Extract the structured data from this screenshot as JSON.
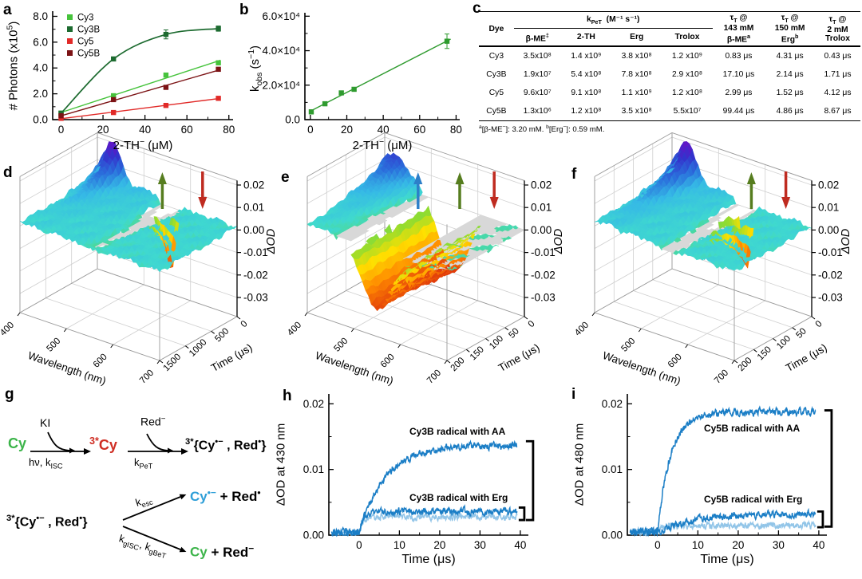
{
  "panel_labels": {
    "a": "a",
    "b": "b",
    "c": "c",
    "d": "d",
    "e": "e",
    "f": "f",
    "g": "g",
    "h": "h",
    "i": "i"
  },
  "table": {
    "header": {
      "dye": "Dye",
      "group": "k<sub>PeT</sub>&nbsp; (M⁻¹ s⁻¹)",
      "sub": [
        "β-ME<sup>‡</sup>",
        "2-TH",
        "Erg",
        "Trolox"
      ],
      "tau": [
        "τ<sub>T</sub> @<br>143 mM<br>β-ME<sup>a</sup>",
        "τ<sub>T</sub> @<br>150 mM<br>Erg<sup>b</sup>",
        "τ<sub>T</sub> @<br>2 mM<br>Trolox"
      ]
    },
    "rows": [
      [
        "Cy3",
        "3.5x10⁸",
        "1.4 x10⁹",
        "3.8 x10⁸",
        "1.2 x10⁹",
        "0.83 μs",
        "4.31 μs",
        "0.43 μs"
      ],
      [
        "Cy3B",
        "1.9x10⁷",
        "5.4 x10⁸",
        "7.8 x10⁸",
        "2.9 x10⁸",
        "17.10 μs",
        "2.14 μs",
        "1.71 μs"
      ],
      [
        "Cy5",
        "9.6x10⁷",
        "9.1 x10⁸",
        "1.1 x10⁹",
        "1.2 x10⁸",
        "2.99 μs",
        "1.52 μs",
        "4.12 μs"
      ],
      [
        "Cy5B",
        "1.3x10⁶",
        "1.2 x10⁸",
        "3.5 x10⁸",
        "5.5x10⁷",
        "99.44 μs",
        "4.86 μs",
        "8.67 μs"
      ]
    ],
    "footnote": "<sup>a</sup>[β-ME<sup>−</sup>]: 3.20 mM. <sup>b</sup>[Erg<sup>−</sup>]: 0.59 mM."
  },
  "scheme": {
    "cy": "Cy",
    "ki": "KI",
    "hv": "hν, k<sub>ISC</sub>",
    "triplet": "<sup>3*</sup>Cy",
    "red": "Red<sup>−</sup>",
    "kpet": "k<sub>PeT</sub>",
    "pair": "<sup>3*</sup>{Cy<sup>•−</sup> , Red<sup>•</sup>}",
    "kesc": "k<sub>esc</sub>",
    "kg": "k<sub>gISC</sub>, k<sub>gBeT</sub>",
    "esc_cy": "Cy<sup>•−</sup>",
    "esc_red": "&nbsp;+ Red<sup>•</sup>",
    "g_cy": "Cy",
    "g_red": "&nbsp;+ Red<sup>−</sup>",
    "colors": {
      "cy_green": "#3cb44a",
      "triplet_red": "#cf2e24",
      "radical_blue": "#2f9fd8"
    }
  },
  "chart_data": [
    {
      "panel": "a",
      "type": "scatter",
      "xlabel": "2-TH<sup>−</sup> (μM)",
      "ylabel": "# Photons (x10<sup>5</sup>)",
      "xlim": [
        -4,
        82
      ],
      "ylim": [
        0,
        8.4
      ],
      "xticks": [
        0,
        20,
        40,
        60,
        80
      ],
      "xminor": [
        10,
        30,
        50,
        70
      ],
      "yticks": [
        {
          "v": 0,
          "label": "0.0"
        },
        {
          "v": 2,
          "label": "2.0"
        },
        {
          "v": 4,
          "label": "4.0"
        },
        {
          "v": 6,
          "label": "6.0"
        },
        {
          "v": 8,
          "label": "8.0"
        }
      ],
      "yminor": [
        1,
        3,
        5,
        7
      ],
      "series": [
        {
          "name": "Cy3",
          "color": "#46c33c",
          "x": [
            0,
            25,
            50,
            75
          ],
          "y": [
            0.5,
            1.85,
            3.45,
            4.4
          ],
          "fit": "line"
        },
        {
          "name": "Cy3B",
          "color": "#1d6b30",
          "x": [
            0,
            25,
            50,
            75
          ],
          "y": [
            0.5,
            4.7,
            6.6,
            7.05
          ],
          "yerr": [
            0.1,
            0.15,
            0.35,
            0.2
          ],
          "fit": "curve"
        },
        {
          "name": "Cy5",
          "color": "#e12a28",
          "x": [
            0,
            25,
            50,
            75
          ],
          "y": [
            0.1,
            0.55,
            1.1,
            1.65
          ],
          "fit": "line"
        },
        {
          "name": "Cy5B",
          "color": "#7c1315",
          "x": [
            0,
            25,
            50,
            75
          ],
          "y": [
            0.3,
            1.55,
            2.5,
            3.9
          ],
          "fit": "line"
        }
      ]
    },
    {
      "panel": "b",
      "type": "scatter",
      "xlabel": "2-TH<sup>−</sup> (μM)",
      "ylabel": "k<sub>obs</sub> (s<sup>−1</sup>)",
      "xlim": [
        -3,
        82
      ],
      "ylim": [
        0,
        62000
      ],
      "xticks": [
        0,
        20,
        40,
        60,
        80
      ],
      "xminor": [
        10,
        30,
        50,
        70
      ],
      "yticks": [
        {
          "v": 0,
          "label": "0.0"
        },
        {
          "v": 20000,
          "label": "2.0×10⁴"
        },
        {
          "v": 40000,
          "label": "4.0×10⁴"
        },
        {
          "v": 60000,
          "label": "6.0×10⁴"
        }
      ],
      "yminor": [
        10000,
        30000,
        50000
      ],
      "series": [
        {
          "name": "kobs",
          "color": "#2f9b2f",
          "x": [
            0.5,
            8,
            17,
            24,
            75
          ],
          "y": [
            4500,
            9200,
            15500,
            17600,
            45500
          ],
          "yerr": [
            1200,
            600,
            900,
            800,
            4200
          ],
          "fit": "line-ext"
        }
      ]
    },
    {
      "panel": "d",
      "type": "surface3d",
      "xlabel": "Wavelength (nm)",
      "ylabel": "Time (μs)",
      "zlabel": "ΔOD",
      "wl_ticks": [
        400,
        500,
        600,
        700
      ],
      "time_ticks": [
        0,
        500,
        1000,
        1500
      ],
      "time_max": 1500,
      "zticks": [
        {
          "v": 0.02,
          "label": "0.02"
        },
        {
          "v": 0.01,
          "label": "0.01"
        },
        {
          "v": 0,
          "label": "0.00"
        },
        {
          "v": -0.01,
          "label": "-0.01"
        },
        {
          "v": -0.02,
          "label": "-0.02"
        },
        {
          "v": -0.03,
          "label": "-0.03"
        }
      ],
      "features": {
        "base": 0.0013,
        "noise": 0.0011,
        "seed": 7,
        "peak": {
          "c": 432,
          "s": 24,
          "a": 0.0175,
          "decay": 4.2
        },
        "broad": {
          "c": 480,
          "s": 80,
          "a": 0.0028,
          "decay": 2.2
        },
        "bleach": {
          "c": 558,
          "s": 15,
          "a": -0.0295,
          "decay": 6.5,
          "persist": 0.06
        }
      },
      "arrows": [
        {
          "x": 0.565,
          "dir": "up",
          "color": "#567d1f"
        },
        {
          "x": 0.705,
          "dir": "down",
          "color": "#bf2b20"
        }
      ]
    },
    {
      "panel": "e",
      "type": "surface3d",
      "xlabel": "Wavelength (nm)",
      "ylabel": "Time (μs)",
      "zlabel": "ΔOD",
      "wl_ticks": [
        400,
        500,
        600,
        700
      ],
      "time_ticks": [
        0,
        50,
        100,
        150,
        200
      ],
      "time_max": 200,
      "zticks": [
        {
          "v": 0.02,
          "label": "0.02"
        },
        {
          "v": 0.01,
          "label": "0.01"
        },
        {
          "v": 0,
          "label": "0.00"
        },
        {
          "v": -0.01,
          "label": "-0.01"
        },
        {
          "v": -0.02,
          "label": "-0.02"
        },
        {
          "v": -0.03,
          "label": "-0.03"
        }
      ],
      "features": {
        "base": -0.0006,
        "noise": 0.0009,
        "seed": 11,
        "peak": {
          "c": 420,
          "s": 40,
          "a": 0.0115,
          "decay": 2.0
        },
        "broad": {
          "c": 450,
          "s": 130,
          "a": 0.0035,
          "decay": 4.5
        },
        "bleach": {
          "c": 548,
          "s": 44,
          "a": -0.0305,
          "decay": 3.0,
          "persist": 0.82
        }
      },
      "arrows": [
        {
          "x": 0.455,
          "dir": "up",
          "color": "#2d7fc9"
        },
        {
          "x": 0.6,
          "dir": "up",
          "color": "#567d1f"
        },
        {
          "x": 0.72,
          "dir": "down",
          "color": "#bf2b20"
        }
      ]
    },
    {
      "panel": "f",
      "type": "surface3d",
      "xlabel": "Wavelength (nm)",
      "ylabel": "Time (μs)",
      "zlabel": "ΔOD",
      "wl_ticks": [
        400,
        500,
        600,
        700
      ],
      "time_ticks": [
        0,
        50,
        100,
        150,
        200
      ],
      "time_max": 200,
      "zticks": [
        {
          "v": 0.02,
          "label": "0.02"
        },
        {
          "v": 0.01,
          "label": "0.01"
        },
        {
          "v": 0,
          "label": "0.00"
        },
        {
          "v": -0.01,
          "label": "-0.01"
        },
        {
          "v": -0.02,
          "label": "-0.02"
        },
        {
          "v": -0.03,
          "label": "-0.03"
        }
      ],
      "features": {
        "base": 0.0013,
        "noise": 0.0011,
        "seed": 19,
        "peak": {
          "c": 432,
          "s": 24,
          "a": 0.0175,
          "decay": 2.6
        },
        "broad": {
          "c": 480,
          "s": 80,
          "a": 0.0028,
          "decay": 1.8
        },
        "bleach": {
          "c": 560,
          "s": 15,
          "a": -0.0285,
          "decay": 3.2,
          "persist": 0.08
        }
      },
      "arrows": [
        {
          "x": 0.615,
          "dir": "up",
          "color": "#567d1f"
        },
        {
          "x": 0.735,
          "dir": "down",
          "color": "#bf2b20"
        }
      ]
    },
    {
      "panel": "h",
      "type": "kinetics",
      "xlabel": "Time (μs)",
      "ylabel": "ΔOD at 430 nm",
      "xlim": [
        -7.5,
        42
      ],
      "ylim": [
        0,
        0.0215
      ],
      "xticks": [
        0,
        10,
        20,
        30,
        40
      ],
      "xminor": [
        5,
        15,
        25,
        35
      ],
      "yticks": [
        {
          "v": 0,
          "label": "0.00"
        },
        {
          "v": 0.01,
          "label": "0.01"
        },
        {
          "v": 0.02,
          "label": "0.02"
        }
      ],
      "yminor": [
        0.005,
        0.015
      ],
      "traces": [
        {
          "name": "Cy3B-with-Erg-light",
          "color": "#92c5e8",
          "plateau": 0.0028,
          "tau": 1.0,
          "noise": 0.00038,
          "seed": 21
        },
        {
          "name": "Cy3B-with-Erg",
          "color": "#1b7ec6",
          "plateau": 0.0036,
          "tau": 1.1,
          "noise": 0.0004,
          "seed": 22
        },
        {
          "name": "Cy3B-with-AA",
          "color": "#1b7ec6",
          "plateau": 0.0137,
          "tau": 6.5,
          "noise": 0.0004,
          "seed": 23
        }
      ],
      "labels": [
        {
          "text": "Cy3B radical with AA",
          "x": 12.5,
          "y": 0.0153
        },
        {
          "text": "Cy3B radical with Erg",
          "x": 12.5,
          "y": 0.0052
        }
      ],
      "brackets": {
        "big": {
          "y1": 0.0143,
          "y2": 0.0023
        },
        "small": {
          "y1": 0.0042,
          "y2": 0.0023
        }
      }
    },
    {
      "panel": "i",
      "type": "kinetics",
      "xlabel": "Time (μs)",
      "ylabel": "ΔOD at 480 nm",
      "xlim": [
        -7.5,
        42
      ],
      "ylim": [
        0,
        0.0215
      ],
      "xticks": [
        0,
        10,
        20,
        30,
        40
      ],
      "xminor": [
        5,
        15,
        25,
        35
      ],
      "yticks": [
        {
          "v": 0,
          "label": "0.00"
        },
        {
          "v": 0.01,
          "label": "0.01"
        },
        {
          "v": 0.02,
          "label": "0.02"
        }
      ],
      "yminor": [
        0.005,
        0.015
      ],
      "traces": [
        {
          "name": "Cy5B-with-Erg-light",
          "color": "#92c5e8",
          "plateau": 0.0015,
          "tau": 0.8,
          "noise": 0.00038,
          "seed": 31
        },
        {
          "name": "Cy5B-with-Erg",
          "color": "#1b7ec6",
          "plateau": 0.0033,
          "tau": 9.0,
          "noise": 0.0004,
          "seed": 32
        },
        {
          "name": "Cy5B-with-AA",
          "color": "#1b7ec6",
          "plateau": 0.0187,
          "tau": 3.2,
          "noise": 0.00042,
          "seed": 33
        }
      ],
      "labels": [
        {
          "text": "Cy5B radical with AA",
          "x": 11.5,
          "y": 0.0158
        },
        {
          "text": "Cy5B radical with Erg",
          "x": 11.5,
          "y": 0.005
        }
      ],
      "brackets": {
        "big": {
          "y1": 0.019,
          "y2": 0.0013
        },
        "small": {
          "y1": 0.0036,
          "y2": 0.0012
        }
      }
    }
  ]
}
